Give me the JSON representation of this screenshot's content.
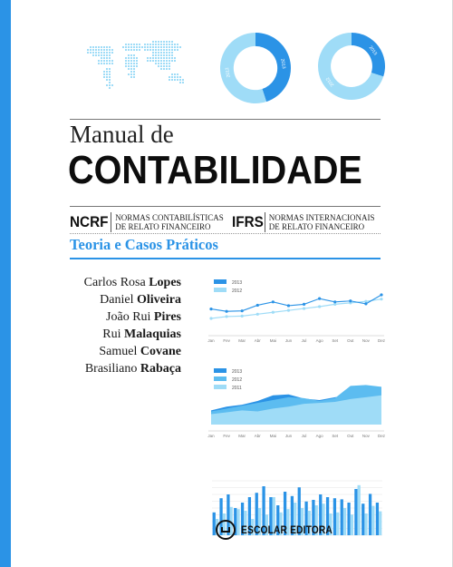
{
  "book": {
    "subtitle": "Manual de",
    "title": "CONTABILIDADE",
    "tagline": "Teoria e Casos Práticos",
    "standards": [
      {
        "code": "NCRF",
        "line1": "Normas contabilísticas",
        "line2": "de relato financeiro"
      },
      {
        "code": "IFRS",
        "line1": "Normas internacionais",
        "line2": "de relato financeiro"
      }
    ],
    "authors": [
      {
        "first": "Carlos Rosa",
        "last": "Lopes"
      },
      {
        "first": "Daniel",
        "last": "Oliveira"
      },
      {
        "first": "João Rui",
        "last": "Pires"
      },
      {
        "first": "Rui",
        "last": "Malaquias"
      },
      {
        "first": "Samuel",
        "last": "Covane"
      },
      {
        "first": "Brasiliano",
        "last": "Rabaça"
      }
    ],
    "publisher": "ESCOLAR EDITORA"
  },
  "colors": {
    "accent": "#2b93e6",
    "light": "#9fdcf7",
    "mid": "#5cbcf0",
    "dark": "#1f7fd6"
  },
  "chart_data": [
    {
      "type": "pie",
      "values": [
        45,
        55
      ],
      "labels": [
        "2013",
        "2012"
      ]
    },
    {
      "type": "pie",
      "values": [
        30,
        70
      ],
      "labels": [
        "2013",
        "2012"
      ]
    },
    {
      "type": "line",
      "categories": [
        "Jan",
        "Fev",
        "Mar",
        "Abr",
        "Mai",
        "Jun",
        "Jul",
        "Ago",
        "Set",
        "Out",
        "Nov",
        "Dez"
      ],
      "series": [
        {
          "name": "2013",
          "values": [
            45,
            40,
            41,
            53,
            60,
            52,
            55,
            67,
            60,
            62,
            56,
            75
          ]
        },
        {
          "name": "2012",
          "values": [
            25,
            29,
            30,
            34,
            38,
            42,
            46,
            50,
            55,
            58,
            61,
            66
          ]
        }
      ],
      "ylim": [
        0,
        100
      ]
    },
    {
      "type": "area",
      "categories": [
        "Jan",
        "Fev",
        "Mar",
        "Abr",
        "Mai",
        "Jun",
        "Jul",
        "Ago",
        "Set",
        "Out",
        "Nov",
        "Dez"
      ],
      "series": [
        {
          "name": "2013",
          "values": [
            30,
            38,
            42,
            50,
            62,
            64,
            55,
            52,
            58,
            64,
            62,
            58
          ]
        },
        {
          "name": "2012",
          "values": [
            28,
            34,
            40,
            46,
            52,
            58,
            56,
            50,
            56,
            82,
            84,
            80
          ]
        },
        {
          "name": "2011",
          "values": [
            22,
            26,
            30,
            28,
            34,
            38,
            44,
            46,
            48,
            54,
            58,
            62
          ]
        }
      ],
      "ylim": [
        0,
        100
      ]
    },
    {
      "type": "bar",
      "series": [
        {
          "name": "dark",
          "values": [
            42,
            68,
            75,
            50,
            60,
            70,
            78,
            90,
            70,
            55,
            80,
            72,
            88,
            62,
            65,
            75,
            70,
            68,
            66,
            60,
            85,
            58,
            76,
            60
          ]
        },
        {
          "name": "light",
          "values": [
            30,
            40,
            52,
            48,
            45,
            30,
            50,
            38,
            70,
            42,
            48,
            60,
            50,
            45,
            55,
            58,
            40,
            42,
            50,
            38,
            92,
            40,
            54,
            44
          ]
        }
      ],
      "ylim": [
        0,
        100
      ]
    }
  ]
}
